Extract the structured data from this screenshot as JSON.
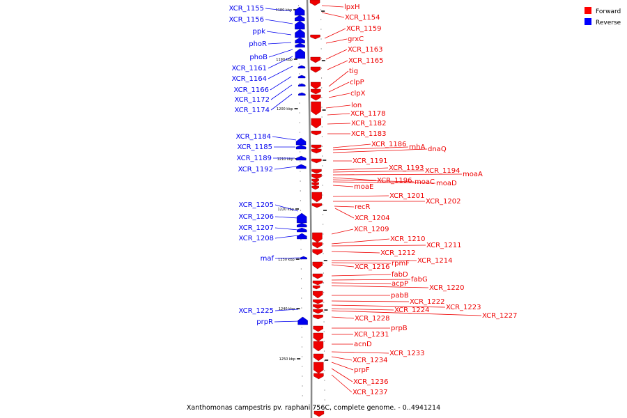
{
  "caption": "Xanthomonas campestris pv. raphani 756C, complete genome. - 0..4941214",
  "legend": [
    {
      "label": "Forward",
      "color": "#ff0000"
    },
    {
      "label": "Reverse",
      "color": "#0000ff"
    }
  ],
  "colors": {
    "forward": "#ee0000",
    "reverse": "#0000ee",
    "axis": "#888888"
  },
  "scale_labels": [
    "1180 kbp",
    "1190 kbp",
    "1200 kbp",
    "1210 kbp",
    "1220 kbp",
    "1230 kbp",
    "1240 kbp",
    "1250 kbp"
  ],
  "reverse_genes": [
    "XCR_1155",
    "XCR_1156",
    "ppk",
    "phoR",
    "phoB",
    "XCR_1161",
    "XCR_1164",
    "XCR_1166",
    "XCR_1172",
    "XCR_1174",
    "XCR_1184",
    "XCR_1185",
    "XCR_1189",
    "XCR_1192",
    "XCR_1205",
    "XCR_1206",
    "XCR_1207",
    "XCR_1208",
    "maf",
    "XCR_1225",
    "prpR"
  ],
  "forward_genes": [
    "lpxH",
    "XCR_1154",
    "XCR_1159",
    "grxC",
    "XCR_1163",
    "XCR_1165",
    "tig",
    "clpP",
    "clpX",
    "lon",
    "XCR_1178",
    "XCR_1182",
    "XCR_1183",
    "XCR_1186",
    "rnhA",
    "dnaQ",
    "XCR_1191",
    "XCR_1193",
    "XCR_1194",
    "moaA",
    "XCR_1196",
    "moaC",
    "moaD",
    "moaE",
    "XCR_1201",
    "XCR_1202",
    "recR",
    "XCR_1204",
    "XCR_1209",
    "XCR_1210",
    "XCR_1211",
    "XCR_1212",
    "XCR_1214",
    "rpmF",
    "XCR_1216",
    "fabD",
    "fabG",
    "acpP",
    "XCR_1220",
    "pabB",
    "XCR_1222",
    "XCR_1223",
    "XCR_1224",
    "XCR_1227",
    "XCR_1228",
    "prpB",
    "XCR_1231",
    "acnD",
    "XCR_1233",
    "XCR_1234",
    "prpF",
    "XCR_1236",
    "XCR_1237"
  ]
}
